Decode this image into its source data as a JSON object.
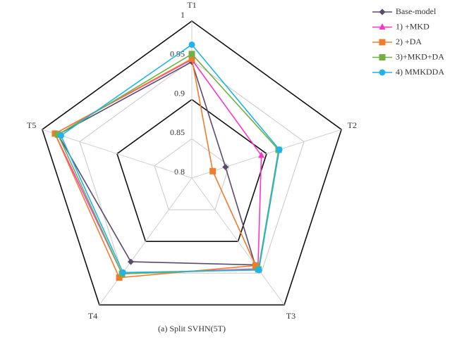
{
  "chart_data": {
    "type": "radar",
    "caption": "(a)  Split SVHN(5T)",
    "categories": [
      "T1",
      "T2",
      "T3",
      "T4",
      "T5"
    ],
    "rlim": [
      0.8,
      1
    ],
    "rticks": [
      0.8,
      0.85,
      0.9,
      0.95,
      1
    ],
    "legend": "top-right",
    "series": [
      {
        "name": "Base-model",
        "color": "#5b4a6b",
        "marker": "diamond",
        "values": [
          0.948,
          0.845,
          0.937,
          0.932,
          0.979
        ]
      },
      {
        "name": "1) +MKD",
        "color": "#ff33cc",
        "marker": "triangle",
        "values": [
          0.951,
          0.893,
          0.943,
          0.951,
          0.983
        ]
      },
      {
        "name": "2) +DA",
        "color": "#f07c2b",
        "marker": "square",
        "values": [
          0.952,
          0.828,
          0.938,
          0.957,
          0.983
        ]
      },
      {
        "name": "3)+MKD+DA",
        "color": "#72b043",
        "marker": "square",
        "values": [
          0.958,
          0.916,
          0.944,
          0.951,
          0.979
        ]
      },
      {
        "name": "4) MMKDDA",
        "color": "#1eb4e8",
        "marker": "circle",
        "values": [
          0.97,
          0.917,
          0.945,
          0.949,
          0.975
        ]
      }
    ]
  }
}
